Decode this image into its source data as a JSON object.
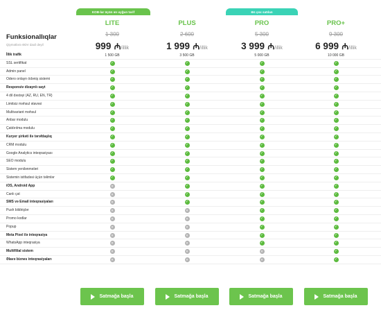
{
  "badges": {
    "sme": "KOB-lar üçün ən uyğun tarif",
    "popular": "Ən çox satılan"
  },
  "header": {
    "title": "Funksionallıqlar",
    "subtitle": "Qiymətlərə ƏDV daxil deyil"
  },
  "price_unit": "₼",
  "price_period": "/illik",
  "plans": [
    {
      "name": "LITE",
      "old_price": "1 300",
      "price": "999"
    },
    {
      "name": "PLUS",
      "old_price": "2 600",
      "price": "1 999"
    },
    {
      "name": "PRO",
      "old_price": "5 300",
      "price": "3 999"
    },
    {
      "name": "PRO+",
      "old_price": "9 300",
      "price": "6 999"
    }
  ],
  "features": [
    {
      "label": "İllik trafik",
      "bold": true,
      "values": [
        "1 500 GB",
        "3 500 GB",
        "5 000 GB",
        "10 000 GB"
      ]
    },
    {
      "label": "SSL sertifikat",
      "bold": false,
      "values": [
        "yes",
        "yes",
        "yes",
        "yes"
      ]
    },
    {
      "label": "Admin panel",
      "bold": false,
      "values": [
        "yes",
        "yes",
        "yes",
        "yes"
      ]
    },
    {
      "label": "Odero onlayn ödəniş sistemi",
      "bold": false,
      "values": [
        "yes",
        "yes",
        "yes",
        "yes"
      ]
    },
    {
      "label": "Responsiv dizaynlı sayt",
      "bold": true,
      "values": [
        "yes",
        "yes",
        "yes",
        "yes"
      ]
    },
    {
      "label": "4 dil dəstəyi (AZ, RU, EN, TR)",
      "bold": false,
      "values": [
        "yes",
        "yes",
        "yes",
        "yes"
      ]
    },
    {
      "label": "Limitsiz məhsul əlavəsi",
      "bold": false,
      "values": [
        "yes",
        "yes",
        "yes",
        "yes"
      ]
    },
    {
      "label": "Multivariant məhsul",
      "bold": false,
      "values": [
        "yes",
        "yes",
        "yes",
        "yes"
      ]
    },
    {
      "label": "Anbar modulu",
      "bold": false,
      "values": [
        "yes",
        "yes",
        "yes",
        "yes"
      ]
    },
    {
      "label": "Çatdırılma modulu",
      "bold": false,
      "values": [
        "yes",
        "yes",
        "yes",
        "yes"
      ]
    },
    {
      "label": "Kuryer şirkəti ilə tərəfdaşlıq",
      "bold": true,
      "values": [
        "yes",
        "yes",
        "yes",
        "yes"
      ]
    },
    {
      "label": "CRM modulu",
      "bold": false,
      "values": [
        "yes",
        "yes",
        "yes",
        "yes"
      ]
    },
    {
      "label": "Google Analytics inteqrasiyası",
      "bold": false,
      "values": [
        "yes",
        "yes",
        "yes",
        "yes"
      ]
    },
    {
      "label": "SEO modulu",
      "bold": false,
      "values": [
        "yes",
        "yes",
        "yes",
        "yes"
      ]
    },
    {
      "label": "Sistem yenilənmələri",
      "bold": false,
      "values": [
        "yes",
        "yes",
        "yes",
        "yes"
      ]
    },
    {
      "label": "Sistemin istifadəsi üçün təlimlər",
      "bold": false,
      "values": [
        "yes",
        "yes",
        "yes",
        "yes"
      ]
    },
    {
      "label": "iOS, Android App",
      "bold": true,
      "values": [
        "no",
        "yes",
        "yes",
        "yes"
      ]
    },
    {
      "label": "Canlı çat",
      "bold": false,
      "values": [
        "no",
        "yes",
        "yes",
        "yes"
      ]
    },
    {
      "label": "SMS və Email inteqrasiyaları",
      "bold": true,
      "values": [
        "no",
        "yes",
        "yes",
        "yes"
      ]
    },
    {
      "label": "Push bildirişlər",
      "bold": false,
      "values": [
        "no",
        "no",
        "yes",
        "yes"
      ]
    },
    {
      "label": "Promo kodlar",
      "bold": false,
      "values": [
        "no",
        "no",
        "yes",
        "yes"
      ]
    },
    {
      "label": "Popup",
      "bold": false,
      "values": [
        "no",
        "no",
        "yes",
        "yes"
      ]
    },
    {
      "label": "Meta Pixel ilə inteqrasiya",
      "bold": true,
      "values": [
        "no",
        "no",
        "yes",
        "yes"
      ]
    },
    {
      "label": "WhatsApp inteqrasiya",
      "bold": false,
      "values": [
        "no",
        "no",
        "yes",
        "yes"
      ]
    },
    {
      "label": "Multifilial sistem",
      "bold": true,
      "values": [
        "no",
        "no",
        "no",
        "yes"
      ]
    },
    {
      "label": "Əlavə biznes inteqrasiyaları",
      "bold": true,
      "values": [
        "no",
        "no",
        "no",
        "yes"
      ]
    }
  ],
  "cta_label": "Satmağa başla",
  "icons": {
    "yes": "check-circle-icon",
    "no": "cross-circle-icon",
    "cta": "play-icon"
  },
  "colors": {
    "accent": "#69c34c",
    "popular": "#3ad3b6",
    "check": "#5cbb3e",
    "cross": "#b3b3b3"
  }
}
